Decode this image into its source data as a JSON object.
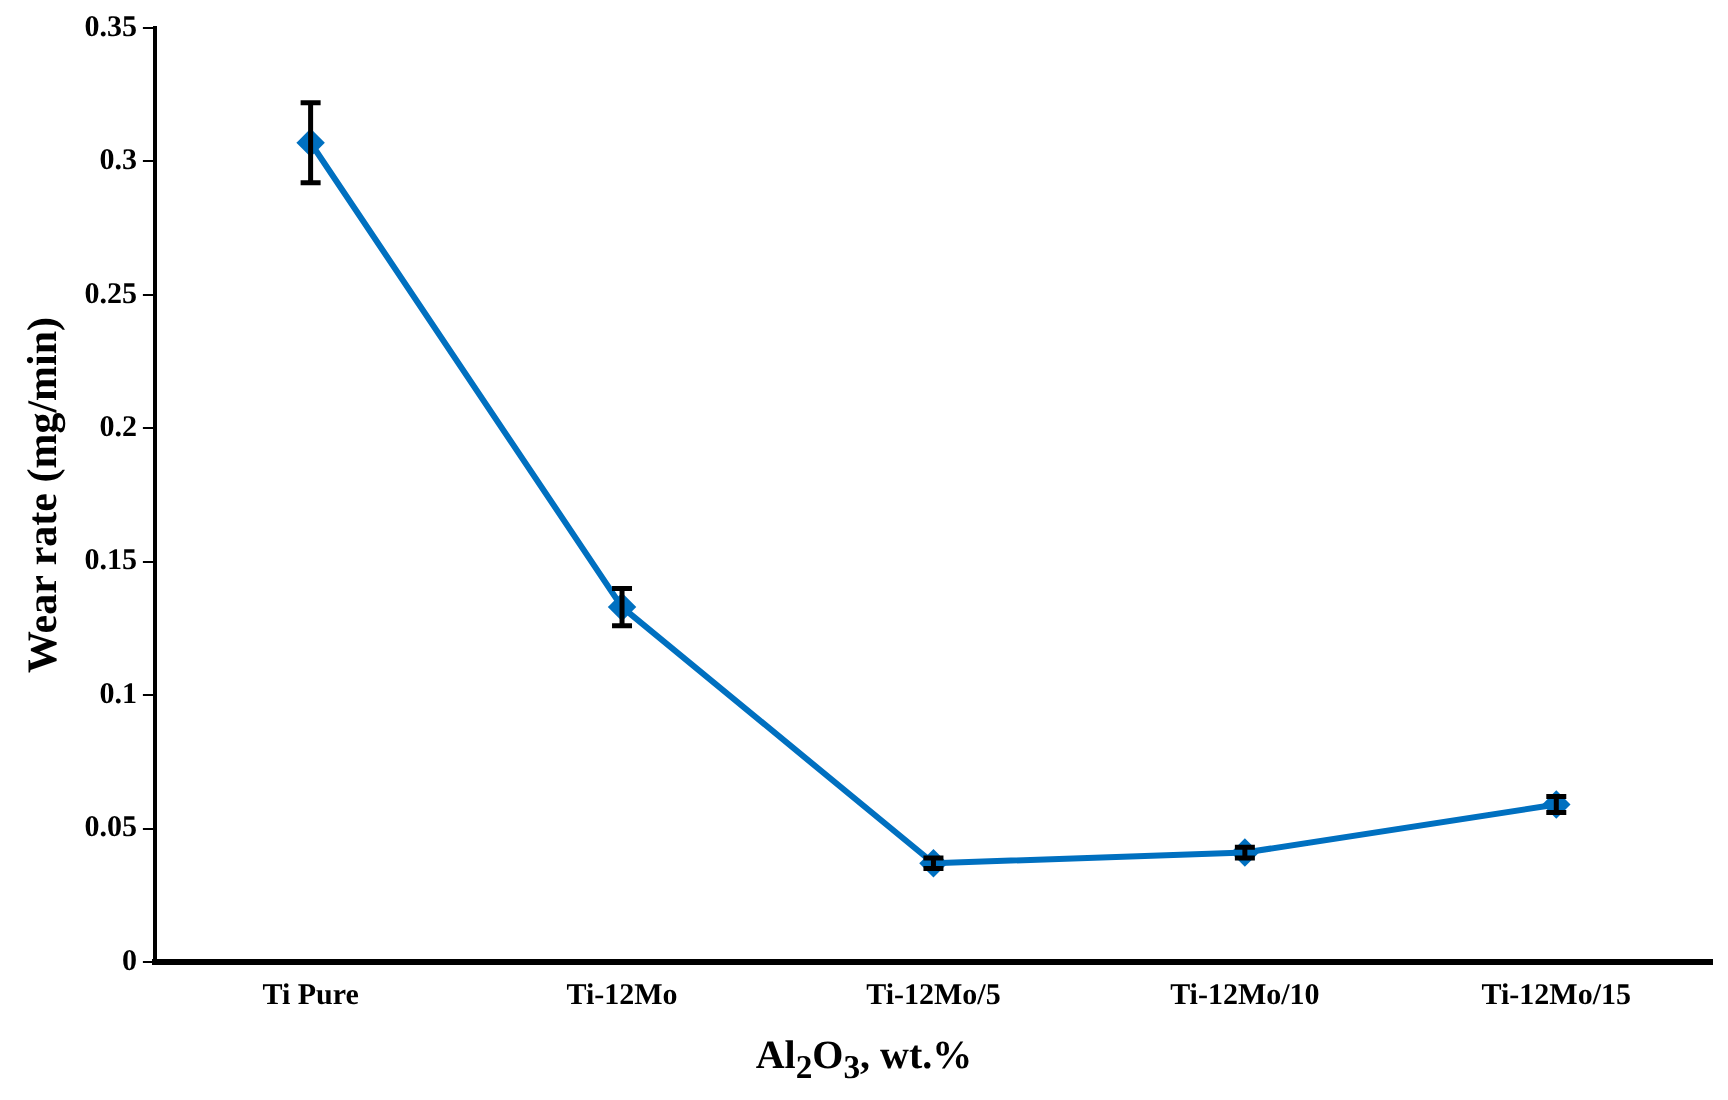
{
  "chart_data": {
    "type": "line",
    "xlabel": "Al$_{2}$O$_{3}$, wt.%",
    "ylabel": "Wear rate (mg/min)",
    "categories": [
      "Ti Pure",
      "Ti-12Mo",
      "Ti-12Mo/5",
      "Ti-12Mo/10",
      "Ti-12Mo/15"
    ],
    "series": [
      {
        "color": "#0070c0",
        "values": [
          0.307,
          0.133,
          0.037,
          0.041,
          0.059
        ],
        "errors": [
          0.015,
          0.007,
          0.002,
          0.002,
          0.003
        ]
      }
    ],
    "ylim": [
      0,
      0.35
    ],
    "yticks": [
      0,
      0.05,
      0.1,
      0.15,
      0.2,
      0.25,
      0.3,
      0.35
    ],
    "grid": false,
    "legend": false,
    "marker": "diamond",
    "line_style": "solid"
  }
}
